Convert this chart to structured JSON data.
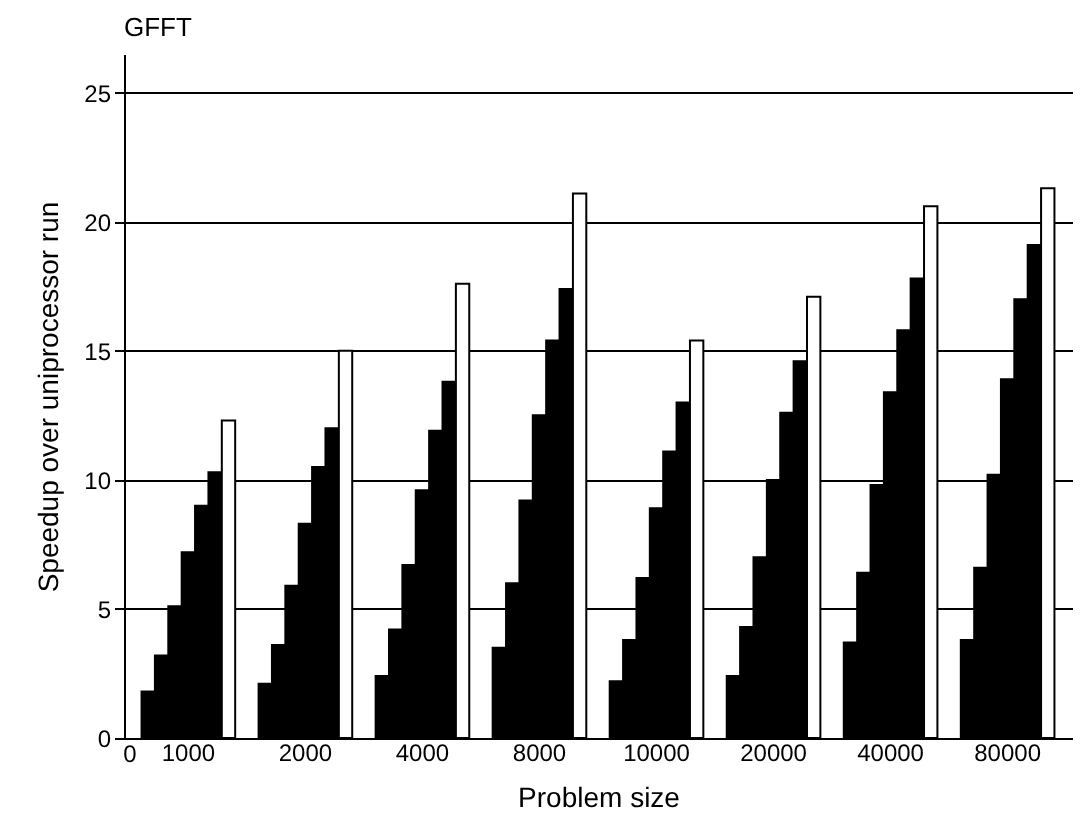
{
  "chart_data": {
    "type": "bar",
    "title": "GFFT",
    "xlabel": "Problem size",
    "ylabel": "Speedup over uniprocessor run",
    "annotations": [
      "0"
    ],
    "categories": [
      "1000",
      "2000",
      "4000",
      "8000",
      "10000",
      "20000",
      "40000",
      "80000"
    ],
    "series": [
      {
        "color": "#000000",
        "values": [
          1.8,
          2.1,
          2.4,
          3.5,
          2.2,
          2.4,
          3.7,
          3.8
        ]
      },
      {
        "color": "#000000",
        "values": [
          3.2,
          3.6,
          4.2,
          6.0,
          3.8,
          4.3,
          6.4,
          6.6
        ]
      },
      {
        "color": "#000000",
        "values": [
          5.1,
          5.9,
          6.7,
          9.2,
          6.2,
          7.0,
          9.8,
          10.2
        ]
      },
      {
        "color": "#000000",
        "values": [
          7.2,
          8.3,
          9.6,
          12.5,
          8.9,
          10.0,
          13.4,
          13.9
        ]
      },
      {
        "color": "#000000",
        "values": [
          9.0,
          10.5,
          11.9,
          15.4,
          11.1,
          12.6,
          15.8,
          17.0
        ]
      },
      {
        "color": "#000000",
        "values": [
          10.3,
          12.0,
          13.8,
          17.4,
          13.0,
          14.6,
          17.8,
          19.1
        ]
      },
      {
        "color": "#ffffff",
        "values": [
          12.3,
          15.0,
          17.6,
          21.1,
          15.4,
          17.1,
          20.6,
          21.3
        ]
      }
    ],
    "ylim": [
      0,
      26.5
    ],
    "yticks": [
      0,
      5,
      10,
      15,
      20,
      25
    ],
    "grid": "y"
  }
}
